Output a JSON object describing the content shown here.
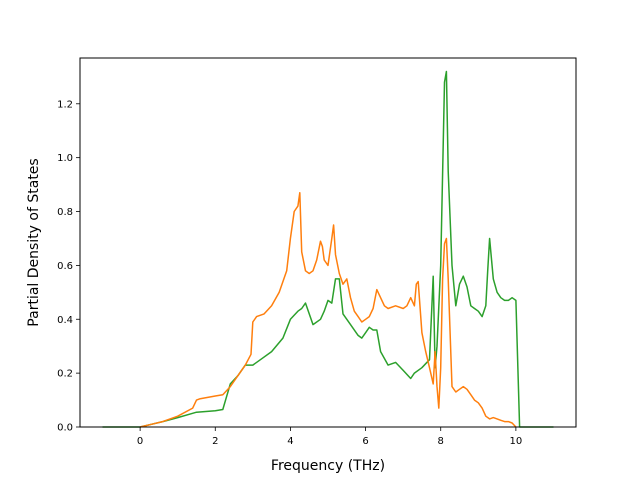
{
  "chart_data": {
    "type": "line",
    "title": "",
    "xlabel": "Frequency (THz)",
    "ylabel": "Partial Density of States",
    "xlim": [
      -1.6,
      11.6
    ],
    "ylim": [
      0,
      1.37
    ],
    "xticks": [
      0,
      2,
      4,
      6,
      8,
      10
    ],
    "yticks": [
      0.0,
      0.2,
      0.4,
      0.6,
      0.8,
      1.0,
      1.2
    ],
    "xtick_labels": [
      "0",
      "2",
      "4",
      "6",
      "8",
      "10"
    ],
    "ytick_labels": [
      "0.0",
      "0.2",
      "0.4",
      "0.6",
      "0.8",
      "1.0",
      "1.2"
    ],
    "grid": false,
    "legend": null,
    "series": [
      {
        "color": "#2ca02c",
        "x": [
          -1.0,
          0.0,
          0.3,
          0.6,
          1.0,
          1.5,
          2.0,
          2.2,
          2.4,
          2.6,
          2.8,
          3.0,
          3.2,
          3.5,
          3.8,
          4.0,
          4.2,
          4.3,
          4.4,
          4.6,
          4.8,
          4.9,
          5.0,
          5.1,
          5.2,
          5.3,
          5.4,
          5.6,
          5.8,
          5.9,
          6.0,
          6.1,
          6.2,
          6.3,
          6.4,
          6.6,
          6.8,
          7.0,
          7.2,
          7.3,
          7.5,
          7.7,
          7.8,
          7.85,
          7.9,
          8.0,
          8.1,
          8.15,
          8.2,
          8.3,
          8.4,
          8.5,
          8.6,
          8.7,
          8.8,
          8.9,
          9.0,
          9.1,
          9.2,
          9.25,
          9.3,
          9.4,
          9.5,
          9.6,
          9.7,
          9.8,
          9.9,
          10.0,
          10.1,
          10.5,
          11.0
        ],
        "y": [
          0.0,
          0.0,
          0.01,
          0.02,
          0.035,
          0.055,
          0.06,
          0.065,
          0.16,
          0.19,
          0.23,
          0.23,
          0.25,
          0.28,
          0.33,
          0.4,
          0.43,
          0.44,
          0.46,
          0.38,
          0.4,
          0.43,
          0.47,
          0.46,
          0.55,
          0.55,
          0.42,
          0.38,
          0.34,
          0.33,
          0.35,
          0.37,
          0.36,
          0.36,
          0.28,
          0.23,
          0.24,
          0.21,
          0.18,
          0.2,
          0.22,
          0.25,
          0.56,
          0.22,
          0.3,
          0.6,
          1.28,
          1.32,
          0.95,
          0.6,
          0.45,
          0.53,
          0.56,
          0.52,
          0.45,
          0.44,
          0.43,
          0.41,
          0.45,
          0.58,
          0.7,
          0.55,
          0.5,
          0.48,
          0.47,
          0.47,
          0.48,
          0.47,
          0.0,
          0.0,
          0.0
        ]
      },
      {
        "color": "#ff7f0e",
        "x": [
          0.0,
          0.3,
          0.6,
          1.0,
          1.4,
          1.5,
          1.6,
          2.0,
          2.2,
          2.4,
          2.6,
          2.8,
          2.95,
          3.0,
          3.1,
          3.3,
          3.5,
          3.7,
          3.9,
          4.0,
          4.1,
          4.2,
          4.25,
          4.3,
          4.4,
          4.5,
          4.6,
          4.7,
          4.8,
          4.85,
          4.9,
          5.0,
          5.1,
          5.15,
          5.2,
          5.3,
          5.4,
          5.5,
          5.6,
          5.7,
          5.8,
          5.9,
          6.0,
          6.1,
          6.2,
          6.3,
          6.4,
          6.5,
          6.6,
          6.8,
          7.0,
          7.1,
          7.2,
          7.3,
          7.35,
          7.4,
          7.5,
          7.6,
          7.7,
          7.8,
          7.85,
          7.9,
          7.95,
          8.0,
          8.05,
          8.1,
          8.15,
          8.2,
          8.3,
          8.4,
          8.5,
          8.6,
          8.7,
          8.8,
          8.9,
          9.0,
          9.1,
          9.2,
          9.3,
          9.4,
          9.5,
          9.6,
          9.7,
          9.8,
          9.9,
          10.0
        ],
        "y": [
          0.0,
          0.01,
          0.02,
          0.04,
          0.07,
          0.1,
          0.105,
          0.115,
          0.12,
          0.15,
          0.19,
          0.23,
          0.27,
          0.39,
          0.41,
          0.42,
          0.45,
          0.5,
          0.58,
          0.7,
          0.8,
          0.82,
          0.87,
          0.65,
          0.58,
          0.57,
          0.58,
          0.62,
          0.69,
          0.67,
          0.62,
          0.6,
          0.7,
          0.75,
          0.64,
          0.57,
          0.53,
          0.55,
          0.48,
          0.43,
          0.41,
          0.39,
          0.4,
          0.41,
          0.44,
          0.51,
          0.48,
          0.45,
          0.44,
          0.45,
          0.44,
          0.45,
          0.48,
          0.45,
          0.53,
          0.54,
          0.35,
          0.28,
          0.22,
          0.16,
          0.28,
          0.15,
          0.07,
          0.22,
          0.55,
          0.68,
          0.7,
          0.55,
          0.15,
          0.13,
          0.14,
          0.15,
          0.14,
          0.12,
          0.1,
          0.09,
          0.07,
          0.04,
          0.03,
          0.035,
          0.03,
          0.025,
          0.02,
          0.02,
          0.015,
          0.0
        ]
      }
    ]
  }
}
